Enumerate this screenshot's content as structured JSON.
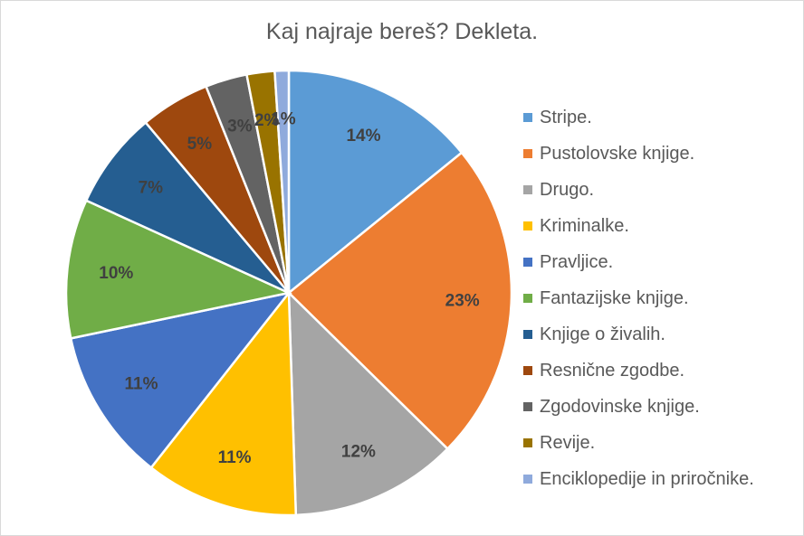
{
  "chart_data": {
    "type": "pie",
    "title": "Kaj najraje bereš? Dekleta.",
    "legend_position": "right",
    "categories": [
      "Stripe.",
      "Pustolovske knjige.",
      "Drugo.",
      "Kriminalke.",
      "Pravljice.",
      "Fantazijske knjige.",
      "Knjige o živalih.",
      "Resnične zgodbe.",
      "Zgodovinske knjige.",
      "Revije.",
      "Enciklopedije in priročnike."
    ],
    "values": [
      14,
      23,
      12,
      11,
      11,
      10,
      7,
      5,
      3,
      2,
      1
    ],
    "data_labels": [
      "14%",
      "23%",
      "12%",
      "11%",
      "11%",
      "10%",
      "7%",
      "5%",
      "3%",
      "2%",
      "1%"
    ],
    "colors": [
      "#5B9BD5",
      "#ED7D31",
      "#A5A5A5",
      "#FFC000",
      "#4472C4",
      "#70AD47",
      "#255E91",
      "#9E480E",
      "#636363",
      "#997300",
      "#8FAADC"
    ]
  }
}
